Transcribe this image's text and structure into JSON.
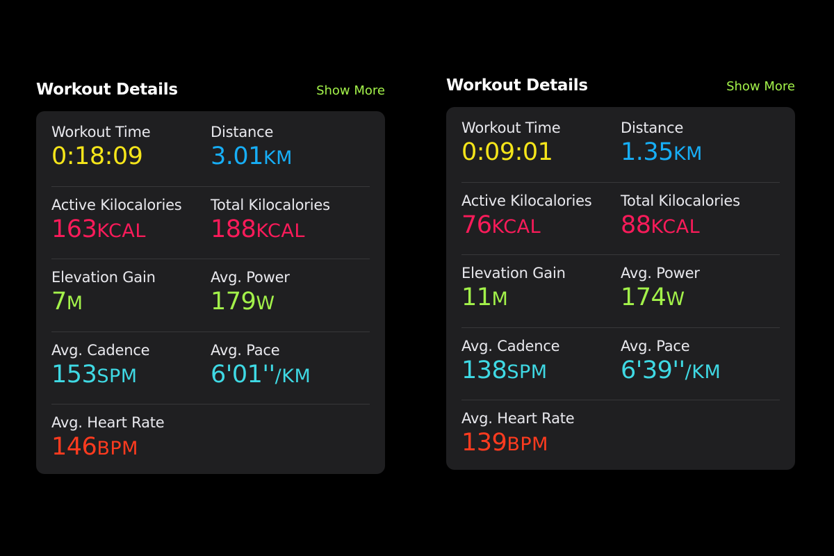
{
  "colors": {
    "yellow": "#f5e51a",
    "blue": "#17aef6",
    "pink": "#fa1b5a",
    "green": "#a3f24a",
    "cyan": "#3fd9e4",
    "red": "#ff3b1f",
    "show_more": "#a3f24a"
  },
  "panels": [
    {
      "title": "Workout Details",
      "show_more": "Show More",
      "metrics": {
        "workout_time": {
          "label": "Workout Time",
          "value": "0:18:09",
          "unit": ""
        },
        "distance": {
          "label": "Distance",
          "value": "3.01",
          "unit": "KM"
        },
        "active_kcal": {
          "label": "Active Kilocalories",
          "value": "163",
          "unit": "KCAL"
        },
        "total_kcal": {
          "label": "Total Kilocalories",
          "value": "188",
          "unit": "KCAL"
        },
        "elevation": {
          "label": "Elevation Gain",
          "value": "7",
          "unit": "M"
        },
        "power": {
          "label": "Avg. Power",
          "value": "179",
          "unit": "W"
        },
        "cadence": {
          "label": "Avg. Cadence",
          "value": "153",
          "unit": "SPM"
        },
        "pace": {
          "label": "Avg. Pace",
          "value": "6'01''",
          "unit": "/KM"
        },
        "heart_rate": {
          "label": "Avg. Heart Rate",
          "value": "146",
          "unit": "BPM"
        }
      }
    },
    {
      "title": "Workout Details",
      "show_more": "Show More",
      "metrics": {
        "workout_time": {
          "label": "Workout Time",
          "value": "0:09:01",
          "unit": ""
        },
        "distance": {
          "label": "Distance",
          "value": "1.35",
          "unit": "KM"
        },
        "active_kcal": {
          "label": "Active Kilocalories",
          "value": "76",
          "unit": "KCAL"
        },
        "total_kcal": {
          "label": "Total Kilocalories",
          "value": "88",
          "unit": "KCAL"
        },
        "elevation": {
          "label": "Elevation Gain",
          "value": "11",
          "unit": "M"
        },
        "power": {
          "label": "Avg. Power",
          "value": "174",
          "unit": "W"
        },
        "cadence": {
          "label": "Avg. Cadence",
          "value": "138",
          "unit": "SPM"
        },
        "pace": {
          "label": "Avg. Pace",
          "value": "6'39''",
          "unit": "/KM"
        },
        "heart_rate": {
          "label": "Avg. Heart Rate",
          "value": "139",
          "unit": "BPM"
        }
      }
    }
  ]
}
